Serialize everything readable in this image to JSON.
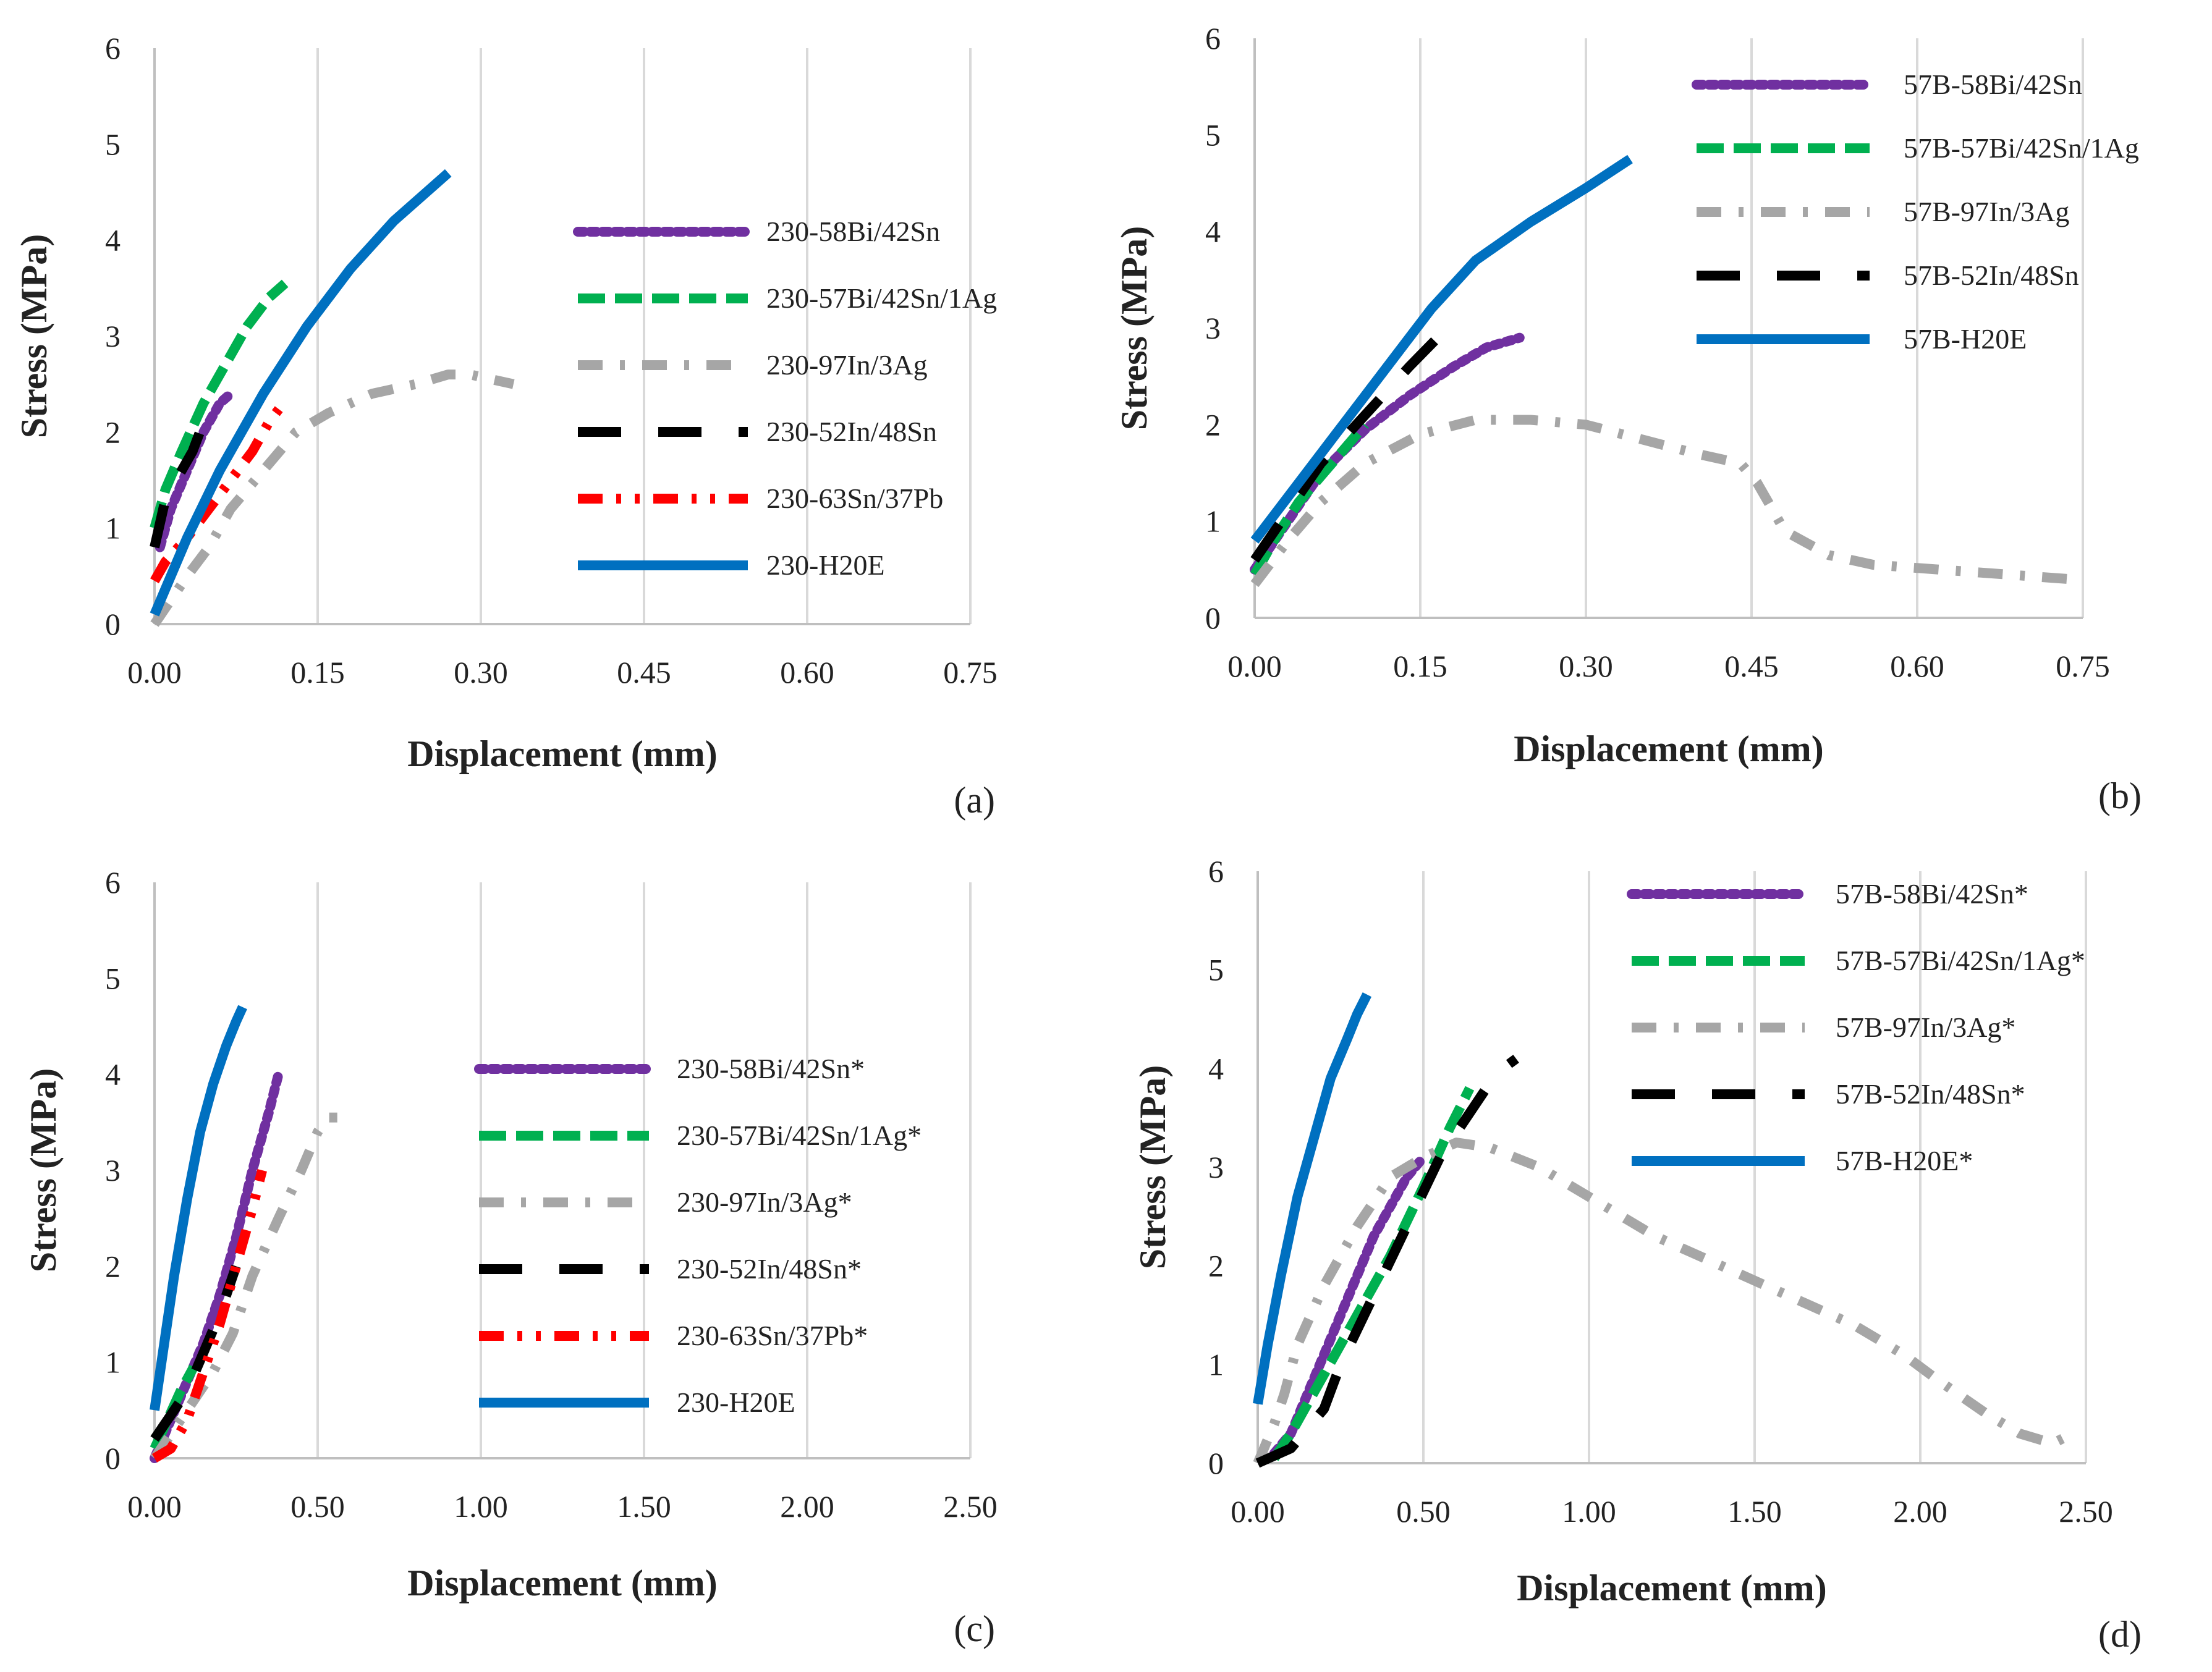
{
  "chart_data": [
    {
      "panel_label": "(a)",
      "type": "scatter",
      "xlabel": "Displacement (mm)",
      "ylabel": "Stress (MPa)",
      "xlim": [
        0,
        0.75
      ],
      "ylim": [
        0,
        6
      ],
      "x_ticks": [
        "0.00",
        "0.15",
        "0.30",
        "0.45",
        "0.60",
        "0.75"
      ],
      "y_ticks": [
        "0",
        "1",
        "2",
        "3",
        "4",
        "5",
        "6"
      ],
      "grid": "vertical",
      "legend_position": "right",
      "series": [
        {
          "name": "230-58Bi/42Sn",
          "color": "#7030a0",
          "style": "dotted",
          "points": [
            [
              0.005,
              0.8
            ],
            [
              0.015,
              1.2
            ],
            [
              0.03,
              1.6
            ],
            [
              0.045,
              2.0
            ],
            [
              0.06,
              2.3
            ],
            [
              0.07,
              2.4
            ]
          ]
        },
        {
          "name": "230-57Bi/42Sn/1Ag",
          "color": "#00b050",
          "style": "dashed",
          "points": [
            [
              0.0,
              1.0
            ],
            [
              0.01,
              1.4
            ],
            [
              0.025,
              1.8
            ],
            [
              0.045,
              2.3
            ],
            [
              0.065,
              2.7
            ],
            [
              0.085,
              3.1
            ],
            [
              0.105,
              3.4
            ],
            [
              0.12,
              3.55
            ]
          ]
        },
        {
          "name": "230-97In/3Ag",
          "color": "#a6a6a6",
          "style": "dashdot",
          "points": [
            [
              0.0,
              0.0
            ],
            [
              0.03,
              0.5
            ],
            [
              0.05,
              0.8
            ],
            [
              0.07,
              1.2
            ],
            [
              0.1,
              1.6
            ],
            [
              0.13,
              2.0
            ],
            [
              0.16,
              2.2
            ],
            [
              0.2,
              2.4
            ],
            [
              0.24,
              2.5
            ],
            [
              0.27,
              2.6
            ],
            [
              0.29,
              2.6
            ],
            [
              0.33,
              2.5
            ]
          ]
        },
        {
          "name": "230-52In/48Sn",
          "color": "#000000",
          "style": "longdash",
          "points": [
            [
              0.0,
              0.8
            ],
            [
              0.01,
              1.3
            ],
            [
              0.02,
              1.5
            ],
            [
              0.035,
              1.8
            ],
            [
              0.045,
              2.1
            ],
            [
              0.05,
              2.15
            ]
          ]
        },
        {
          "name": "230-63Sn/37Pb",
          "color": "#ff0000",
          "style": "dashdotdot",
          "points": [
            [
              0.0,
              0.45
            ],
            [
              0.01,
              0.65
            ],
            [
              0.03,
              0.9
            ],
            [
              0.05,
              1.2
            ],
            [
              0.07,
              1.5
            ],
            [
              0.09,
              1.8
            ],
            [
              0.105,
              2.1
            ],
            [
              0.115,
              2.25
            ]
          ]
        },
        {
          "name": "230-H20E",
          "color": "#0070c0",
          "style": "solid",
          "points": [
            [
              0.0,
              0.1
            ],
            [
              0.03,
              0.9
            ],
            [
              0.06,
              1.6
            ],
            [
              0.1,
              2.4
            ],
            [
              0.14,
              3.1
            ],
            [
              0.18,
              3.7
            ],
            [
              0.22,
              4.2
            ],
            [
              0.25,
              4.5
            ],
            [
              0.27,
              4.7
            ]
          ]
        }
      ]
    },
    {
      "panel_label": "(b)",
      "type": "scatter",
      "xlabel": "Displacement (mm)",
      "ylabel": "Stress (MPa)",
      "xlim": [
        0,
        0.75
      ],
      "ylim": [
        0,
        6
      ],
      "x_ticks": [
        "0.00",
        "0.15",
        "0.30",
        "0.45",
        "0.60",
        "0.75"
      ],
      "y_ticks": [
        "0",
        "1",
        "2",
        "3",
        "4",
        "5",
        "6"
      ],
      "grid": "vertical",
      "legend_position": "top-right",
      "series": [
        {
          "name": "57B-58Bi/42Sn",
          "color": "#7030a0",
          "style": "dotted",
          "points": [
            [
              0.0,
              0.5
            ],
            [
              0.03,
              1.0
            ],
            [
              0.06,
              1.5
            ],
            [
              0.1,
              1.95
            ],
            [
              0.14,
              2.3
            ],
            [
              0.18,
              2.6
            ],
            [
              0.21,
              2.8
            ],
            [
              0.24,
              2.9
            ]
          ]
        },
        {
          "name": "57B-57Bi/42Sn/1Ag",
          "color": "#00b050",
          "style": "dashed",
          "points": [
            [
              0.0,
              0.45
            ],
            [
              0.02,
              0.85
            ],
            [
              0.04,
              1.2
            ],
            [
              0.07,
              1.6
            ],
            [
              0.1,
              2.0
            ]
          ]
        },
        {
          "name": "57B-97In/3Ag",
          "color": "#a6a6a6",
          "style": "dashdot",
          "points": [
            [
              0.0,
              0.35
            ],
            [
              0.03,
              0.8
            ],
            [
              0.06,
              1.2
            ],
            [
              0.1,
              1.6
            ],
            [
              0.15,
              1.9
            ],
            [
              0.2,
              2.05
            ],
            [
              0.25,
              2.05
            ],
            [
              0.3,
              2.0
            ],
            [
              0.35,
              1.85
            ],
            [
              0.4,
              1.7
            ],
            [
              0.44,
              1.6
            ],
            [
              0.455,
              1.4
            ],
            [
              0.48,
              0.9
            ],
            [
              0.52,
              0.65
            ],
            [
              0.56,
              0.55
            ],
            [
              0.62,
              0.5
            ],
            [
              0.68,
              0.45
            ],
            [
              0.74,
              0.4
            ]
          ]
        },
        {
          "name": "57B-52In/48Sn",
          "color": "#000000",
          "style": "longdash",
          "points": [
            [
              0.0,
              0.6
            ],
            [
              0.03,
              1.1
            ],
            [
              0.06,
              1.6
            ],
            [
              0.1,
              2.1
            ],
            [
              0.14,
              2.6
            ],
            [
              0.17,
              2.95
            ]
          ]
        },
        {
          "name": "57B-H20E",
          "color": "#0070c0",
          "style": "solid",
          "points": [
            [
              0.0,
              0.8
            ],
            [
              0.04,
              1.4
            ],
            [
              0.08,
              2.0
            ],
            [
              0.12,
              2.6
            ],
            [
              0.16,
              3.2
            ],
            [
              0.2,
              3.7
            ],
            [
              0.25,
              4.1
            ],
            [
              0.3,
              4.45
            ],
            [
              0.34,
              4.75
            ]
          ]
        }
      ]
    },
    {
      "panel_label": "(c)",
      "type": "scatter",
      "xlabel": "Displacement (mm)",
      "ylabel": "Stress (MPa)",
      "xlim": [
        0,
        2.5
      ],
      "ylim": [
        0,
        6
      ],
      "x_ticks": [
        "0.00",
        "0.50",
        "1.00",
        "1.50",
        "2.00",
        "2.50"
      ],
      "y_ticks": [
        "0",
        "1",
        "2",
        "3",
        "4",
        "5",
        "6"
      ],
      "grid": "vertical",
      "legend_position": "right",
      "series": [
        {
          "name": "230-58Bi/42Sn*",
          "color": "#7030a0",
          "style": "dotted",
          "points": [
            [
              0.0,
              0.0
            ],
            [
              0.05,
              0.4
            ],
            [
              0.1,
              0.8
            ],
            [
              0.15,
              1.2
            ],
            [
              0.2,
              1.7
            ],
            [
              0.25,
              2.3
            ],
            [
              0.3,
              3.0
            ],
            [
              0.35,
              3.6
            ],
            [
              0.38,
              4.0
            ]
          ]
        },
        {
          "name": "230-57Bi/42Sn/1Ag*",
          "color": "#00b050",
          "style": "dashed",
          "points": [
            [
              0.0,
              0.1
            ],
            [
              0.04,
              0.4
            ],
            [
              0.08,
              0.7
            ],
            [
              0.12,
              0.95
            ]
          ]
        },
        {
          "name": "230-97In/3Ag*",
          "color": "#a6a6a6",
          "style": "dashdot",
          "points": [
            [
              0.0,
              0.0
            ],
            [
              0.1,
              0.5
            ],
            [
              0.18,
              0.9
            ],
            [
              0.24,
              1.3
            ],
            [
              0.3,
              1.9
            ],
            [
              0.38,
              2.5
            ],
            [
              0.45,
              3.0
            ],
            [
              0.5,
              3.4
            ],
            [
              0.53,
              3.55
            ],
            [
              0.56,
              3.55
            ]
          ]
        },
        {
          "name": "230-52In/48Sn*",
          "color": "#000000",
          "style": "longdash",
          "points": [
            [
              0.0,
              0.2
            ],
            [
              0.05,
              0.45
            ],
            [
              0.1,
              0.7
            ],
            [
              0.15,
              1.1
            ],
            [
              0.2,
              1.5
            ],
            [
              0.25,
              2.0
            ]
          ]
        },
        {
          "name": "230-63Sn/37Pb*",
          "color": "#ff0000",
          "style": "dashdotdot",
          "points": [
            [
              0.0,
              0.0
            ],
            [
              0.05,
              0.1
            ],
            [
              0.1,
              0.4
            ],
            [
              0.15,
              0.9
            ],
            [
              0.2,
              1.4
            ],
            [
              0.25,
              2.0
            ],
            [
              0.3,
              2.6
            ],
            [
              0.33,
              3.0
            ]
          ]
        },
        {
          "name": "230-H20E",
          "color": "#0070c0",
          "style": "solid",
          "points": [
            [
              0.0,
              0.5
            ],
            [
              0.03,
              1.2
            ],
            [
              0.06,
              1.9
            ],
            [
              0.1,
              2.7
            ],
            [
              0.14,
              3.4
            ],
            [
              0.18,
              3.9
            ],
            [
              0.22,
              4.3
            ],
            [
              0.25,
              4.55
            ],
            [
              0.27,
              4.7
            ]
          ]
        }
      ]
    },
    {
      "panel_label": "(d)",
      "type": "scatter",
      "xlabel": "Displacement (mm)",
      "ylabel": "Stress (MPa)",
      "xlim": [
        0,
        2.5
      ],
      "ylim": [
        0,
        6
      ],
      "x_ticks": [
        "0.00",
        "0.50",
        "1.00",
        "1.50",
        "2.00",
        "2.50"
      ],
      "y_ticks": [
        "0",
        "1",
        "2",
        "3",
        "4",
        "5",
        "6"
      ],
      "grid": "vertical",
      "legend_position": "top-right",
      "series": [
        {
          "name": "57B-58Bi/42Sn*",
          "color": "#7030a0",
          "style": "dotted",
          "points": [
            [
              0.05,
              0.1
            ],
            [
              0.1,
              0.3
            ],
            [
              0.15,
              0.7
            ],
            [
              0.2,
              1.1
            ],
            [
              0.25,
              1.5
            ],
            [
              0.3,
              1.9
            ],
            [
              0.35,
              2.3
            ],
            [
              0.4,
              2.6
            ],
            [
              0.45,
              2.9
            ],
            [
              0.5,
              3.1
            ]
          ]
        },
        {
          "name": "57B-57Bi/42Sn/1Ag*",
          "color": "#00b050",
          "style": "dashed",
          "points": [
            [
              0.05,
              0.05
            ],
            [
              0.1,
              0.3
            ],
            [
              0.15,
              0.6
            ],
            [
              0.2,
              0.9
            ],
            [
              0.3,
              1.5
            ],
            [
              0.4,
              2.1
            ],
            [
              0.5,
              2.8
            ],
            [
              0.58,
              3.4
            ],
            [
              0.64,
              3.8
            ]
          ]
        },
        {
          "name": "57B-97In/3Ag*",
          "color": "#a6a6a6",
          "style": "dashdot",
          "points": [
            [
              0.0,
              0.0
            ],
            [
              0.05,
              0.4
            ],
            [
              0.08,
              0.7
            ],
            [
              0.12,
              1.2
            ],
            [
              0.2,
              1.8
            ],
            [
              0.3,
              2.4
            ],
            [
              0.4,
              2.9
            ],
            [
              0.5,
              3.1
            ],
            [
              0.6,
              3.25
            ],
            [
              0.7,
              3.2
            ],
            [
              0.85,
              3.0
            ],
            [
              1.0,
              2.7
            ],
            [
              1.2,
              2.3
            ],
            [
              1.4,
              2.0
            ],
            [
              1.6,
              1.7
            ],
            [
              1.8,
              1.4
            ],
            [
              1.95,
              1.1
            ],
            [
              2.05,
              0.85
            ],
            [
              2.2,
              0.5
            ],
            [
              2.3,
              0.3
            ],
            [
              2.4,
              0.2
            ],
            [
              2.46,
              0.3
            ]
          ]
        },
        {
          "name": "57B-52In/48Sn*",
          "color": "#000000",
          "style": "longdash",
          "points": [
            [
              0.0,
              0.0
            ],
            [
              0.1,
              0.15
            ],
            [
              0.2,
              0.55
            ],
            [
              0.25,
              1.0
            ],
            [
              0.35,
              1.7
            ],
            [
              0.45,
              2.4
            ],
            [
              0.55,
              3.1
            ],
            [
              0.65,
              3.6
            ],
            [
              0.72,
              3.95
            ],
            [
              0.78,
              4.1
            ]
          ]
        },
        {
          "name": "57B-H20E*",
          "color": "#0070c0",
          "style": "solid",
          "points": [
            [
              0.0,
              0.6
            ],
            [
              0.03,
              1.2
            ],
            [
              0.07,
              1.9
            ],
            [
              0.12,
              2.7
            ],
            [
              0.17,
              3.3
            ],
            [
              0.22,
              3.9
            ],
            [
              0.27,
              4.3
            ],
            [
              0.3,
              4.55
            ],
            [
              0.33,
              4.75
            ]
          ]
        }
      ]
    }
  ]
}
